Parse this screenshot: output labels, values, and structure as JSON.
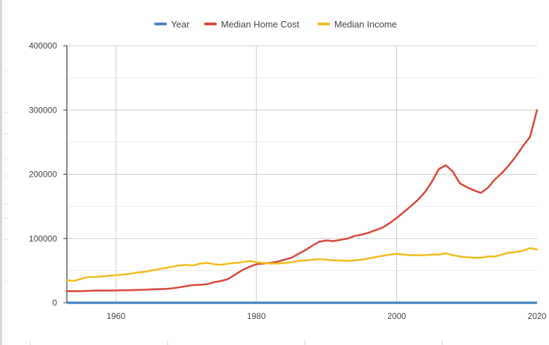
{
  "chart_data": {
    "type": "line",
    "title": "",
    "xlabel": "",
    "ylabel": "",
    "xlim": [
      1953,
      2020
    ],
    "ylim": [
      0,
      400000
    ],
    "grid": true,
    "legend_position": "top",
    "x_ticks": [
      1960,
      1980,
      2000,
      2020
    ],
    "y_ticks": [
      0,
      100000,
      200000,
      300000,
      400000
    ],
    "x_tick_labels": [
      "1960",
      "1980",
      "2000",
      "2020"
    ],
    "y_tick_labels": [
      "0",
      "100000",
      "200000",
      "300000",
      "400000"
    ],
    "x": [
      1953,
      1954,
      1955,
      1956,
      1957,
      1958,
      1959,
      1960,
      1961,
      1962,
      1963,
      1964,
      1965,
      1966,
      1967,
      1968,
      1969,
      1970,
      1971,
      1972,
      1973,
      1974,
      1975,
      1976,
      1977,
      1978,
      1979,
      1980,
      1981,
      1982,
      1983,
      1984,
      1985,
      1986,
      1987,
      1988,
      1989,
      1990,
      1991,
      1992,
      1993,
      1994,
      1995,
      1996,
      1997,
      1998,
      1999,
      2000,
      2001,
      2002,
      2003,
      2004,
      2005,
      2006,
      2007,
      2008,
      2009,
      2010,
      2011,
      2012,
      2013,
      2014,
      2015,
      2016,
      2017,
      2018,
      2019,
      2020
    ],
    "series": [
      {
        "name": "Year",
        "color": "#4a86c8",
        "values": [
          1953,
          1954,
          1955,
          1956,
          1957,
          1958,
          1959,
          1960,
          1961,
          1962,
          1963,
          1964,
          1965,
          1966,
          1967,
          1968,
          1969,
          1970,
          1971,
          1972,
          1973,
          1974,
          1975,
          1976,
          1977,
          1978,
          1979,
          1980,
          1981,
          1982,
          1983,
          1984,
          1985,
          1986,
          1987,
          1988,
          1989,
          1990,
          1991,
          1992,
          1993,
          1994,
          1995,
          1996,
          1997,
          1998,
          1999,
          2000,
          2001,
          2002,
          2003,
          2004,
          2005,
          2006,
          2007,
          2008,
          2009,
          2010,
          2011,
          2012,
          2013,
          2014,
          2015,
          2016,
          2017,
          2018,
          2019,
          2020
        ]
      },
      {
        "name": "Median Home Cost",
        "color": "#d9483b",
        "values": [
          18000,
          18000,
          18000,
          18500,
          19000,
          19000,
          19000,
          19200,
          19500,
          19500,
          20000,
          20300,
          20700,
          21200,
          21500,
          22500,
          24000,
          26000,
          27500,
          28000,
          29000,
          32000,
          34000,
          37000,
          44000,
          51000,
          56000,
          60000,
          61000,
          62000,
          64000,
          67000,
          70000,
          76000,
          82000,
          89000,
          95000,
          97000,
          96000,
          98000,
          100000,
          104000,
          106000,
          109000,
          113000,
          117000,
          124000,
          132000,
          141000,
          150000,
          160000,
          172000,
          188000,
          208000,
          214000,
          204000,
          186000,
          180000,
          175000,
          171000,
          179000,
          192000,
          202000,
          214000,
          228000,
          244000,
          258000,
          300000
        ]
      },
      {
        "name": "Median Income",
        "color": "#f2bd1e",
        "values": [
          35000,
          34000,
          37000,
          40000,
          40000,
          41000,
          42000,
          43000,
          44000,
          45000,
          47000,
          48000,
          50000,
          52000,
          54000,
          56000,
          58000,
          59000,
          58000,
          61000,
          62000,
          60000,
          59000,
          61000,
          62000,
          63000,
          65000,
          63000,
          62000,
          61000,
          61000,
          62000,
          63000,
          65000,
          66000,
          67000,
          68000,
          67000,
          66000,
          66000,
          65000,
          66000,
          67000,
          69000,
          71000,
          73000,
          75000,
          76000,
          75000,
          74000,
          74000,
          74000,
          75000,
          75000,
          77000,
          74000,
          72000,
          71000,
          70000,
          70000,
          72000,
          72000,
          75000,
          78000,
          79000,
          81000,
          85000,
          83000
        ]
      }
    ]
  }
}
